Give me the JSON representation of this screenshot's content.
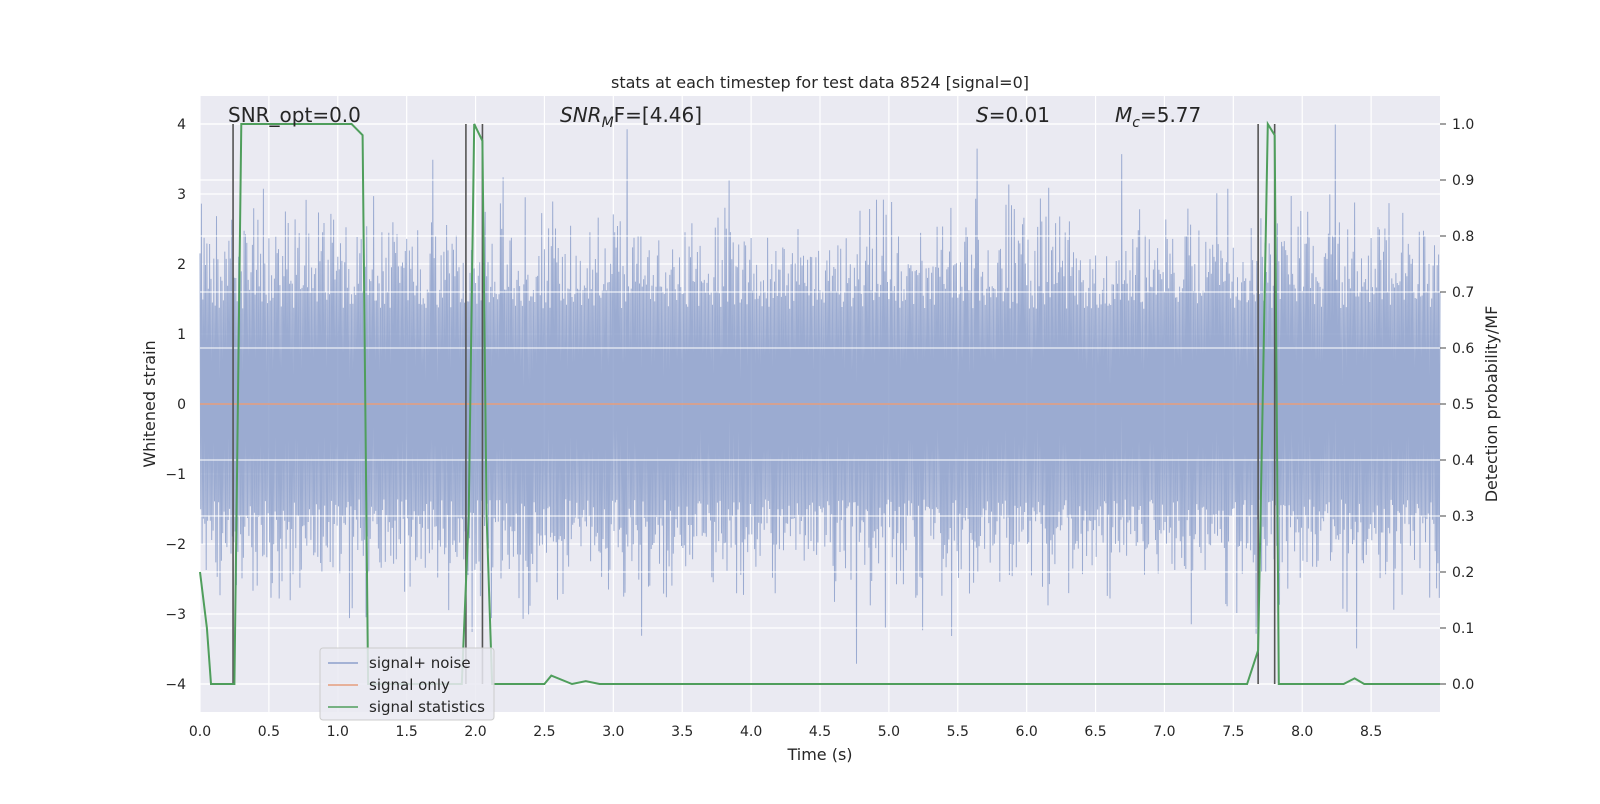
{
  "chart_data": {
    "type": "line",
    "title": "stats at each timestep for test data 8524 [signal=0]",
    "xlabel": "Time (s)",
    "ylabel": "Whitened strain",
    "y2label": "Detection probability/MF",
    "xlim": [
      0,
      9
    ],
    "ylim": [
      -4.4,
      4.4
    ],
    "y2lim": [
      -0.05,
      1.05
    ],
    "grid": true,
    "x_ticks": [
      "0.0",
      "0.5",
      "1.0",
      "1.5",
      "2.0",
      "2.5",
      "3.0",
      "3.5",
      "4.0",
      "4.5",
      "5.0",
      "5.5",
      "6.0",
      "6.5",
      "7.0",
      "7.5",
      "8.0",
      "8.5"
    ],
    "y_ticks": [
      "4",
      "3",
      "2",
      "1",
      "0",
      "−1",
      "−2",
      "−3",
      "−4"
    ],
    "y2_ticks": [
      "1.0",
      "0.9",
      "0.8",
      "0.7",
      "0.6",
      "0.5",
      "0.4",
      "0.3",
      "0.2",
      "0.1",
      "0.0"
    ],
    "annotations": [
      {
        "name": "snr-opt",
        "text": "SNR_opt=0.0"
      },
      {
        "name": "snr-mf",
        "base": "SNR",
        "sub": "M",
        "rest": "F=[4.46]"
      },
      {
        "name": "s-stat",
        "base": "S",
        "sub": "",
        "rest": "=0.01"
      },
      {
        "name": "chirp-mass",
        "base": "M",
        "sub": "c",
        "rest": "=5.77"
      }
    ],
    "legend": {
      "location": "lower-left",
      "entries": [
        {
          "label": "signal+ noise",
          "color": "#8da0cb"
        },
        {
          "label": "signal only",
          "color": "#e59d7c"
        },
        {
          "label": "signal statistics",
          "color": "#4f9e5c"
        }
      ]
    },
    "series": [
      {
        "name": "signal+ noise",
        "axis": "left",
        "kind": "noise",
        "amplitude_typical": 1.6,
        "amplitude_peak": 4.0,
        "color": "#8da0cb"
      },
      {
        "name": "signal only",
        "axis": "left",
        "values": [
          [
            0,
            0
          ],
          [
            9,
            0
          ]
        ],
        "color": "#e59d7c"
      },
      {
        "name": "signal statistics",
        "axis": "right",
        "color": "#4f9e5c",
        "x": [
          0.0,
          0.05,
          0.08,
          0.25,
          0.27,
          0.3,
          1.1,
          1.18,
          1.2,
          1.22,
          1.9,
          1.95,
          1.99,
          2.05,
          2.08,
          2.12,
          2.5,
          2.55,
          2.7,
          2.8,
          2.9,
          7.6,
          7.68,
          7.75,
          7.8,
          7.83,
          8.3,
          8.38,
          8.45,
          9.0
        ],
        "values": [
          0.2,
          0.1,
          0.0,
          0.0,
          0.4,
          1.0,
          1.0,
          0.98,
          0.5,
          0.0,
          0.0,
          0.3,
          1.0,
          0.97,
          0.3,
          0.0,
          0.0,
          0.015,
          0.0,
          0.005,
          0.0,
          0.0,
          0.06,
          1.0,
          0.98,
          0.0,
          0.0,
          0.01,
          0.0,
          0.0
        ]
      }
    ],
    "event_markers": [
      0.24,
      1.93,
      2.05,
      7.68,
      7.8
    ],
    "colors": {
      "plot_bg": "#eaeaf2",
      "grid": "#ffffff",
      "marker": "#555555"
    }
  }
}
